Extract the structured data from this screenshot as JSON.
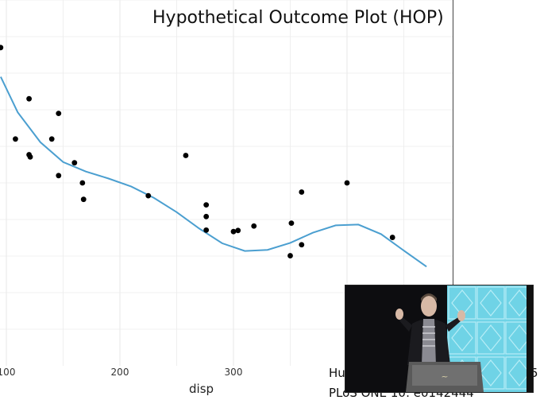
{
  "slide": {
    "title": "Hypothetical Outcome Plot (HOP)",
    "xlabel": "disp",
    "citation_line1": "Hu",
    "citation_line2": "PLoS ONE 10: e0142444",
    "right_edge_text": "5"
  },
  "colors": {
    "points": "#000000",
    "smooth_line": "#4b9fd0",
    "grid": "#ebebeb",
    "background": "#ffffff"
  },
  "chart_data": {
    "type": "scatter",
    "title": "",
    "xlabel": "disp",
    "ylabel": "",
    "x_ticks": [
      100,
      200,
      300
    ],
    "x_tick_labels": [
      "100",
      "200",
      "300"
    ],
    "xlim": [
      95,
      480
    ],
    "ylim": [
      0.0,
      1.0
    ],
    "grid": true,
    "points": [
      {
        "x": 95,
        "y": 0.87
      },
      {
        "x": 108,
        "y": 0.62
      },
      {
        "x": 120,
        "y": 0.73
      },
      {
        "x": 120,
        "y": 0.577
      },
      {
        "x": 121,
        "y": 0.571
      },
      {
        "x": 140,
        "y": 0.62
      },
      {
        "x": 146,
        "y": 0.52
      },
      {
        "x": 146,
        "y": 0.69
      },
      {
        "x": 160,
        "y": 0.555
      },
      {
        "x": 167,
        "y": 0.5
      },
      {
        "x": 168,
        "y": 0.455
      },
      {
        "x": 225,
        "y": 0.465
      },
      {
        "x": 258,
        "y": 0.575
      },
      {
        "x": 276,
        "y": 0.44
      },
      {
        "x": 276,
        "y": 0.408
      },
      {
        "x": 276,
        "y": 0.371
      },
      {
        "x": 300,
        "y": 0.367
      },
      {
        "x": 304,
        "y": 0.37
      },
      {
        "x": 318,
        "y": 0.382
      },
      {
        "x": 350,
        "y": 0.301
      },
      {
        "x": 351,
        "y": 0.39
      },
      {
        "x": 360,
        "y": 0.331
      },
      {
        "x": 360,
        "y": 0.475
      },
      {
        "x": 400,
        "y": 0.5
      },
      {
        "x": 440,
        "y": 0.351
      }
    ],
    "smooth": {
      "x": [
        95,
        110,
        130,
        150,
        170,
        190,
        210,
        230,
        250,
        270,
        290,
        310,
        330,
        350,
        370,
        390,
        410,
        430,
        450,
        470
      ],
      "y": [
        0.79,
        0.693,
        0.611,
        0.557,
        0.531,
        0.512,
        0.49,
        0.459,
        0.42,
        0.375,
        0.335,
        0.314,
        0.317,
        0.336,
        0.364,
        0.384,
        0.386,
        0.36,
        0.315,
        0.271
      ]
    }
  },
  "webcam": {
    "description": "speaker-video-feed"
  }
}
